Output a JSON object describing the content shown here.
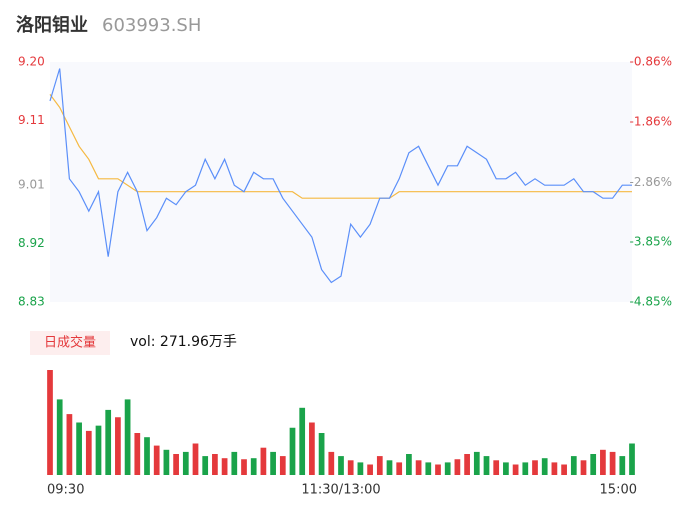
{
  "header": {
    "title": "洛阳钼业",
    "code": "603993.SH"
  },
  "chart_data": [
    {
      "type": "line",
      "xlim": [
        0,
        240
      ],
      "xticks": [
        {
          "value": 0,
          "label": "09:30"
        },
        {
          "value": 120,
          "label": "11:30/13:00"
        },
        {
          "value": 240,
          "label": "15:00"
        }
      ],
      "x": [
        0,
        4,
        8,
        12,
        16,
        20,
        24,
        28,
        32,
        36,
        40,
        44,
        48,
        52,
        56,
        60,
        64,
        68,
        72,
        76,
        80,
        84,
        88,
        92,
        96,
        100,
        104,
        108,
        112,
        116,
        120,
        124,
        128,
        132,
        136,
        140,
        144,
        148,
        152,
        156,
        160,
        164,
        168,
        172,
        176,
        180,
        184,
        188,
        192,
        196,
        200,
        204,
        208,
        212,
        216,
        220,
        224,
        228,
        232,
        236,
        240
      ],
      "series": [
        {
          "name": "price",
          "color": "#5b8ff9",
          "values": [
            9.14,
            9.19,
            9.02,
            9.0,
            8.97,
            9.0,
            8.9,
            9.0,
            9.03,
            9.0,
            8.94,
            8.96,
            8.99,
            8.98,
            9.0,
            9.01,
            9.05,
            9.02,
            9.05,
            9.01,
            9.0,
            9.03,
            9.02,
            9.02,
            8.99,
            8.97,
            8.95,
            8.93,
            8.88,
            8.86,
            8.87,
            8.95,
            8.93,
            8.95,
            8.99,
            8.99,
            9.02,
            9.06,
            9.07,
            9.04,
            9.01,
            9.04,
            9.04,
            9.07,
            9.06,
            9.05,
            9.02,
            9.02,
            9.03,
            9.01,
            9.02,
            9.01,
            9.01,
            9.01,
            9.02,
            9.0,
            9.0,
            8.99,
            8.99,
            9.01,
            9.01
          ]
        },
        {
          "name": "average",
          "color": "#f5b942",
          "values": [
            9.15,
            9.13,
            9.1,
            9.07,
            9.05,
            9.02,
            9.02,
            9.02,
            9.01,
            9.0,
            9.0,
            9.0,
            9.0,
            9.0,
            9.0,
            9.0,
            9.0,
            9.0,
            9.0,
            9.0,
            9.0,
            9.0,
            9.0,
            9.0,
            9.0,
            9.0,
            8.99,
            8.99,
            8.99,
            8.99,
            8.99,
            8.99,
            8.99,
            8.99,
            8.99,
            8.99,
            9.0,
            9.0,
            9.0,
            9.0,
            9.0,
            9.0,
            9.0,
            9.0,
            9.0,
            9.0,
            9.0,
            9.0,
            9.0,
            9.0,
            9.0,
            9.0,
            9.0,
            9.0,
            9.0,
            9.0,
            9.0,
            9.0,
            9.0,
            9.0,
            9.0
          ]
        }
      ],
      "ylim": [
        8.83,
        9.2
      ],
      "yticks": [
        {
          "value": 9.2,
          "label": "9.20"
        },
        {
          "value": 9.11,
          "label": "9.11"
        },
        {
          "value": 9.01,
          "label": "9.01"
        },
        {
          "value": 8.92,
          "label": "8.92"
        },
        {
          "value": 8.83,
          "label": "8.83"
        }
      ],
      "y2lim": [
        -4.85,
        -0.86
      ],
      "y2ticks": [
        {
          "value": -0.86,
          "label": "-0.86%"
        },
        {
          "value": -1.86,
          "label": "-1.86%"
        },
        {
          "value": -2.86,
          "label": "-2.86%"
        },
        {
          "value": -3.85,
          "label": "-3.85%"
        },
        {
          "value": -4.85,
          "label": "-4.85%"
        }
      ],
      "up_color": "#e4393c",
      "down_color": "#1aa34a",
      "flat_color": "#999999"
    },
    {
      "type": "bar",
      "title": "日成交量",
      "annotation": "vol: 271.96万手",
      "xlim": [
        0,
        240
      ],
      "x": [
        0,
        4,
        8,
        12,
        16,
        20,
        24,
        28,
        32,
        36,
        40,
        44,
        48,
        52,
        56,
        60,
        64,
        68,
        72,
        76,
        80,
        84,
        88,
        92,
        96,
        100,
        104,
        108,
        112,
        116,
        120,
        124,
        128,
        132,
        136,
        140,
        144,
        148,
        152,
        156,
        160,
        164,
        168,
        172,
        176,
        180,
        184,
        188,
        192,
        196,
        200,
        204,
        208,
        212,
        216,
        220,
        224,
        228,
        232,
        236,
        240
      ],
      "values": [
        100,
        72,
        58,
        50,
        42,
        47,
        62,
        55,
        72,
        40,
        36,
        28,
        24,
        20,
        22,
        30,
        18,
        20,
        16,
        22,
        15,
        16,
        26,
        22,
        18,
        45,
        64,
        50,
        40,
        22,
        18,
        14,
        12,
        10,
        18,
        14,
        12,
        20,
        14,
        12,
        10,
        12,
        15,
        20,
        22,
        18,
        14,
        12,
        10,
        12,
        14,
        16,
        12,
        10,
        18,
        14,
        20,
        24,
        22,
        18,
        30
      ],
      "up": [
        true,
        false,
        true,
        false,
        true,
        false,
        false,
        true,
        false,
        true,
        false,
        true,
        false,
        true,
        false,
        true,
        false,
        true,
        true,
        false,
        true,
        false,
        true,
        false,
        true,
        false,
        false,
        true,
        false,
        true,
        false,
        true,
        false,
        true,
        true,
        false,
        true,
        false,
        true,
        false,
        true,
        false,
        true,
        true,
        false,
        false,
        true,
        false,
        true,
        false,
        true,
        false,
        true,
        true,
        false,
        true,
        false,
        true,
        true,
        false,
        false
      ],
      "ylim": [
        0,
        100
      ],
      "up_color": "#e4393c",
      "down_color": "#1aa34a"
    }
  ]
}
